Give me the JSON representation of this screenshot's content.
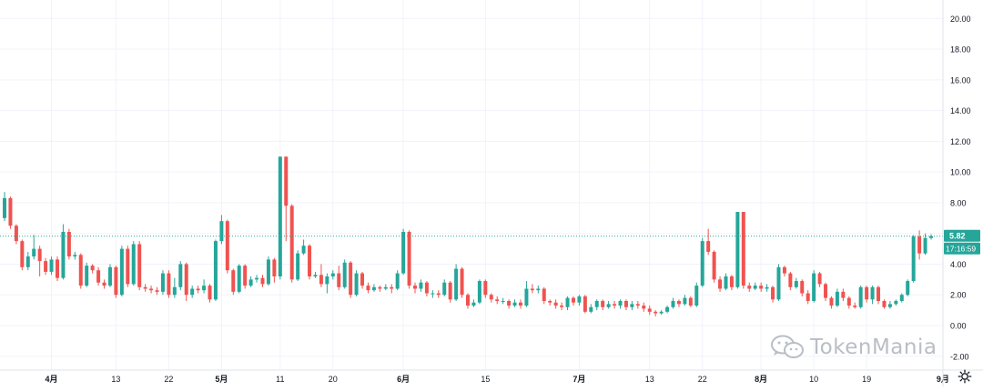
{
  "colors": {
    "up": "#26a69a",
    "down": "#ef5350",
    "grid": "#f0f3fa",
    "axis_text": "#131722",
    "price_line": "#26a69a",
    "watermark": "#b9bec6"
  },
  "watermark": {
    "text": "TokenMania",
    "icon": "wechat-icon"
  },
  "price_label": {
    "value": "5.82",
    "countdown": "17:16:59"
  },
  "chart_data": {
    "type": "candlestick",
    "y_axis": {
      "ticks": [
        "20.00",
        "18.00",
        "16.00",
        "14.00",
        "12.00",
        "10.00",
        "8.00",
        "6.00",
        "4.00",
        "2.00",
        "0.00",
        "-2.00"
      ],
      "ylim": [
        -2.9,
        21.2
      ]
    },
    "x_axis": {
      "labels": [
        {
          "text": "4月",
          "bold": true,
          "index": 8
        },
        {
          "text": "13",
          "bold": false,
          "index": 19
        },
        {
          "text": "22",
          "bold": false,
          "index": 28
        },
        {
          "text": "5月",
          "bold": true,
          "index": 37
        },
        {
          "text": "11",
          "bold": false,
          "index": 47
        },
        {
          "text": "20",
          "bold": false,
          "index": 56
        },
        {
          "text": "6月",
          "bold": true,
          "index": 68
        },
        {
          "text": "15",
          "bold": false,
          "index": 82
        },
        {
          "text": "7月",
          "bold": true,
          "index": 98
        },
        {
          "text": "13",
          "bold": false,
          "index": 110
        },
        {
          "text": "22",
          "bold": false,
          "index": 119
        },
        {
          "text": "8月",
          "bold": true,
          "index": 129
        },
        {
          "text": "10",
          "bold": false,
          "index": 138
        },
        {
          "text": "19",
          "bold": false,
          "index": 147
        },
        {
          "text": "9月",
          "bold": true,
          "index": 160
        }
      ]
    },
    "last_price": 5.82,
    "candles": [
      [
        7.0,
        8.3,
        8.7,
        6.8
      ],
      [
        8.3,
        6.5,
        8.4,
        6.3
      ],
      [
        6.5,
        5.5,
        6.6,
        5.3
      ],
      [
        5.5,
        3.8,
        5.6,
        3.6
      ],
      [
        3.8,
        4.5,
        4.8,
        3.6
      ],
      [
        4.5,
        5.0,
        5.9,
        4.3
      ],
      [
        5.0,
        4.2,
        5.2,
        3.2
      ],
      [
        4.2,
        3.5,
        4.4,
        3.3
      ],
      [
        3.5,
        4.3,
        4.5,
        3.3
      ],
      [
        4.3,
        3.1,
        4.5,
        2.9
      ],
      [
        3.1,
        6.1,
        6.6,
        3.0
      ],
      [
        6.1,
        4.5,
        6.3,
        4.3
      ],
      [
        4.5,
        4.6,
        4.8,
        4.3
      ],
      [
        4.6,
        2.6,
        4.7,
        2.4
      ],
      [
        2.6,
        3.9,
        4.1,
        2.5
      ],
      [
        3.9,
        3.6,
        4.0,
        3.4
      ],
      [
        3.6,
        2.8,
        3.8,
        2.6
      ],
      [
        2.8,
        2.6,
        3.0,
        2.4
      ],
      [
        2.6,
        3.8,
        4.0,
        2.5
      ],
      [
        3.8,
        2.0,
        3.9,
        1.8
      ],
      [
        2.0,
        5.0,
        5.2,
        1.9
      ],
      [
        5.0,
        2.7,
        5.2,
        2.5
      ],
      [
        2.7,
        5.3,
        5.5,
        2.6
      ],
      [
        5.3,
        2.5,
        5.5,
        2.3
      ],
      [
        2.5,
        2.4,
        2.7,
        2.2
      ],
      [
        2.4,
        2.3,
        2.6,
        2.1
      ],
      [
        2.3,
        2.2,
        2.5,
        2.0
      ],
      [
        2.2,
        3.4,
        3.6,
        2.0
      ],
      [
        3.4,
        2.0,
        3.6,
        1.8
      ],
      [
        2.0,
        2.5,
        3.1,
        1.8
      ],
      [
        2.5,
        4.0,
        4.2,
        2.3
      ],
      [
        4.0,
        2.0,
        4.1,
        1.6
      ],
      [
        2.0,
        2.4,
        2.6,
        1.8
      ],
      [
        2.4,
        2.3,
        2.6,
        2.1
      ],
      [
        2.3,
        2.6,
        3.0,
        2.1
      ],
      [
        2.6,
        1.7,
        2.7,
        1.5
      ],
      [
        1.7,
        5.5,
        5.6,
        1.6
      ],
      [
        5.5,
        6.8,
        7.2,
        5.3
      ],
      [
        6.8,
        3.6,
        6.9,
        3.4
      ],
      [
        3.6,
        2.2,
        3.7,
        2.0
      ],
      [
        2.2,
        3.9,
        4.0,
        2.1
      ],
      [
        3.9,
        2.6,
        4.0,
        2.4
      ],
      [
        2.6,
        3.0,
        3.2,
        2.5
      ],
      [
        3.0,
        3.1,
        3.3,
        2.8
      ],
      [
        3.1,
        2.7,
        3.3,
        2.5
      ],
      [
        2.7,
        4.3,
        4.5,
        2.6
      ],
      [
        4.3,
        3.2,
        4.4,
        2.8
      ],
      [
        3.2,
        11.0,
        11.0,
        3.0
      ],
      [
        11.0,
        7.8,
        11.0,
        5.5
      ],
      [
        7.8,
        3.0,
        7.9,
        2.8
      ],
      [
        3.0,
        4.7,
        4.9,
        2.9
      ],
      [
        4.7,
        5.2,
        5.6,
        4.6
      ],
      [
        5.2,
        3.2,
        5.3,
        3.0
      ],
      [
        3.2,
        3.3,
        3.5,
        3.1
      ],
      [
        3.3,
        2.7,
        4.0,
        2.5
      ],
      [
        2.7,
        3.2,
        3.4,
        2.1
      ],
      [
        3.2,
        3.4,
        3.6,
        3.0
      ],
      [
        3.4,
        2.5,
        3.9,
        2.3
      ],
      [
        2.5,
        4.1,
        4.3,
        2.4
      ],
      [
        4.1,
        2.0,
        4.2,
        1.8
      ],
      [
        2.0,
        3.4,
        3.6,
        1.9
      ],
      [
        3.4,
        2.6,
        3.5,
        2.4
      ],
      [
        2.6,
        2.3,
        2.8,
        2.1
      ],
      [
        2.3,
        2.5,
        2.7,
        2.2
      ],
      [
        2.5,
        2.4,
        2.6,
        2.2
      ],
      [
        2.4,
        2.5,
        2.7,
        2.3
      ],
      [
        2.5,
        2.4,
        2.7,
        2.1
      ],
      [
        2.4,
        3.4,
        3.6,
        2.3
      ],
      [
        3.4,
        6.1,
        6.3,
        3.3
      ],
      [
        6.1,
        2.6,
        6.2,
        2.4
      ],
      [
        2.6,
        2.4,
        2.8,
        2.1
      ],
      [
        2.4,
        2.8,
        3.0,
        2.2
      ],
      [
        2.8,
        2.1,
        2.9,
        1.9
      ],
      [
        2.1,
        2.1,
        2.3,
        1.8
      ],
      [
        2.1,
        2.0,
        2.3,
        1.8
      ],
      [
        2.0,
        2.8,
        3.0,
        1.9
      ],
      [
        2.8,
        1.7,
        2.9,
        1.5
      ],
      [
        1.7,
        3.7,
        4.0,
        1.6
      ],
      [
        3.7,
        2.0,
        3.8,
        1.8
      ],
      [
        2.0,
        1.3,
        2.1,
        1.1
      ],
      [
        1.3,
        1.5,
        1.7,
        1.2
      ],
      [
        1.5,
        2.9,
        3.0,
        1.4
      ],
      [
        2.9,
        2.0,
        3.0,
        1.8
      ],
      [
        2.0,
        1.7,
        2.1,
        1.5
      ],
      [
        1.7,
        1.6,
        1.9,
        1.4
      ],
      [
        1.6,
        1.6,
        1.8,
        1.4
      ],
      [
        1.6,
        1.3,
        1.7,
        1.1
      ],
      [
        1.3,
        1.5,
        1.7,
        1.2
      ],
      [
        1.5,
        1.3,
        1.7,
        1.1
      ],
      [
        1.3,
        2.4,
        2.9,
        1.2
      ],
      [
        2.4,
        2.3,
        2.7,
        2.1
      ],
      [
        2.3,
        2.4,
        2.6,
        2.1
      ],
      [
        2.4,
        1.6,
        2.5,
        1.4
      ],
      [
        1.6,
        1.5,
        1.7,
        1.3
      ],
      [
        1.5,
        1.3,
        1.7,
        1.1
      ],
      [
        1.3,
        1.2,
        1.5,
        1.0
      ],
      [
        1.2,
        1.8,
        1.9,
        1.0
      ],
      [
        1.8,
        1.5,
        1.9,
        1.3
      ],
      [
        1.5,
        1.9,
        2.0,
        1.3
      ],
      [
        1.9,
        0.9,
        2.0,
        0.8
      ],
      [
        0.9,
        1.2,
        1.4,
        0.8
      ],
      [
        1.2,
        1.6,
        1.7,
        1.0
      ],
      [
        1.6,
        1.2,
        1.7,
        1.0
      ],
      [
        1.2,
        1.4,
        1.6,
        1.1
      ],
      [
        1.4,
        1.3,
        1.6,
        1.1
      ],
      [
        1.3,
        1.6,
        1.7,
        1.1
      ],
      [
        1.6,
        1.2,
        1.7,
        1.0
      ],
      [
        1.2,
        1.4,
        1.6,
        1.0
      ],
      [
        1.4,
        1.3,
        1.6,
        1.1
      ],
      [
        1.3,
        1.1,
        1.5,
        0.9
      ],
      [
        1.1,
        0.9,
        1.3,
        0.7
      ],
      [
        0.9,
        0.8,
        1.0,
        0.6
      ],
      [
        0.8,
        0.9,
        1.0,
        0.7
      ],
      [
        0.9,
        1.2,
        1.3,
        0.8
      ],
      [
        1.2,
        1.6,
        1.8,
        1.1
      ],
      [
        1.6,
        1.4,
        1.7,
        1.2
      ],
      [
        1.4,
        1.8,
        2.0,
        1.3
      ],
      [
        1.8,
        1.3,
        1.9,
        1.2
      ],
      [
        1.3,
        2.6,
        2.8,
        1.2
      ],
      [
        2.6,
        5.5,
        5.7,
        2.5
      ],
      [
        5.5,
        4.8,
        6.3,
        4.6
      ],
      [
        4.8,
        3.0,
        4.9,
        2.8
      ],
      [
        3.0,
        2.4,
        3.2,
        2.2
      ],
      [
        2.4,
        3.2,
        3.4,
        2.3
      ],
      [
        3.2,
        2.5,
        3.3,
        2.3
      ],
      [
        2.5,
        7.4,
        7.4,
        2.4
      ],
      [
        7.4,
        2.6,
        7.4,
        2.4
      ],
      [
        2.6,
        2.4,
        2.8,
        2.2
      ],
      [
        2.4,
        2.6,
        2.8,
        2.3
      ],
      [
        2.6,
        2.4,
        2.8,
        2.2
      ],
      [
        2.4,
        2.5,
        2.7,
        2.2
      ],
      [
        2.5,
        1.7,
        2.6,
        1.5
      ],
      [
        1.7,
        3.8,
        4.0,
        1.6
      ],
      [
        3.8,
        3.4,
        3.9,
        3.2
      ],
      [
        3.4,
        2.5,
        3.5,
        2.3
      ],
      [
        2.5,
        2.9,
        3.1,
        2.4
      ],
      [
        2.9,
        2.1,
        3.0,
        1.9
      ],
      [
        2.1,
        1.6,
        2.3,
        1.4
      ],
      [
        1.6,
        3.4,
        3.6,
        1.5
      ],
      [
        3.4,
        2.7,
        3.5,
        2.5
      ],
      [
        2.7,
        1.8,
        2.8,
        1.6
      ],
      [
        1.8,
        1.3,
        1.9,
        1.1
      ],
      [
        1.3,
        2.2,
        2.4,
        1.2
      ],
      [
        2.2,
        1.8,
        2.4,
        1.6
      ],
      [
        1.8,
        1.3,
        1.9,
        1.1
      ],
      [
        1.3,
        1.2,
        1.5,
        1.1
      ],
      [
        1.2,
        2.5,
        2.6,
        1.1
      ],
      [
        2.5,
        1.7,
        2.6,
        1.5
      ],
      [
        1.7,
        2.5,
        2.6,
        1.4
      ],
      [
        2.5,
        1.6,
        2.6,
        1.4
      ],
      [
        1.6,
        1.2,
        1.7,
        1.1
      ],
      [
        1.2,
        1.4,
        1.6,
        1.1
      ],
      [
        1.4,
        1.6,
        1.7,
        1.3
      ],
      [
        1.6,
        2.0,
        2.1,
        1.5
      ],
      [
        2.0,
        2.9,
        3.0,
        1.9
      ],
      [
        2.9,
        5.8,
        5.9,
        2.8
      ],
      [
        5.8,
        4.7,
        6.2,
        4.3
      ],
      [
        4.7,
        5.7,
        6.0,
        4.6
      ],
      [
        5.7,
        5.82,
        5.95,
        5.6
      ]
    ]
  }
}
